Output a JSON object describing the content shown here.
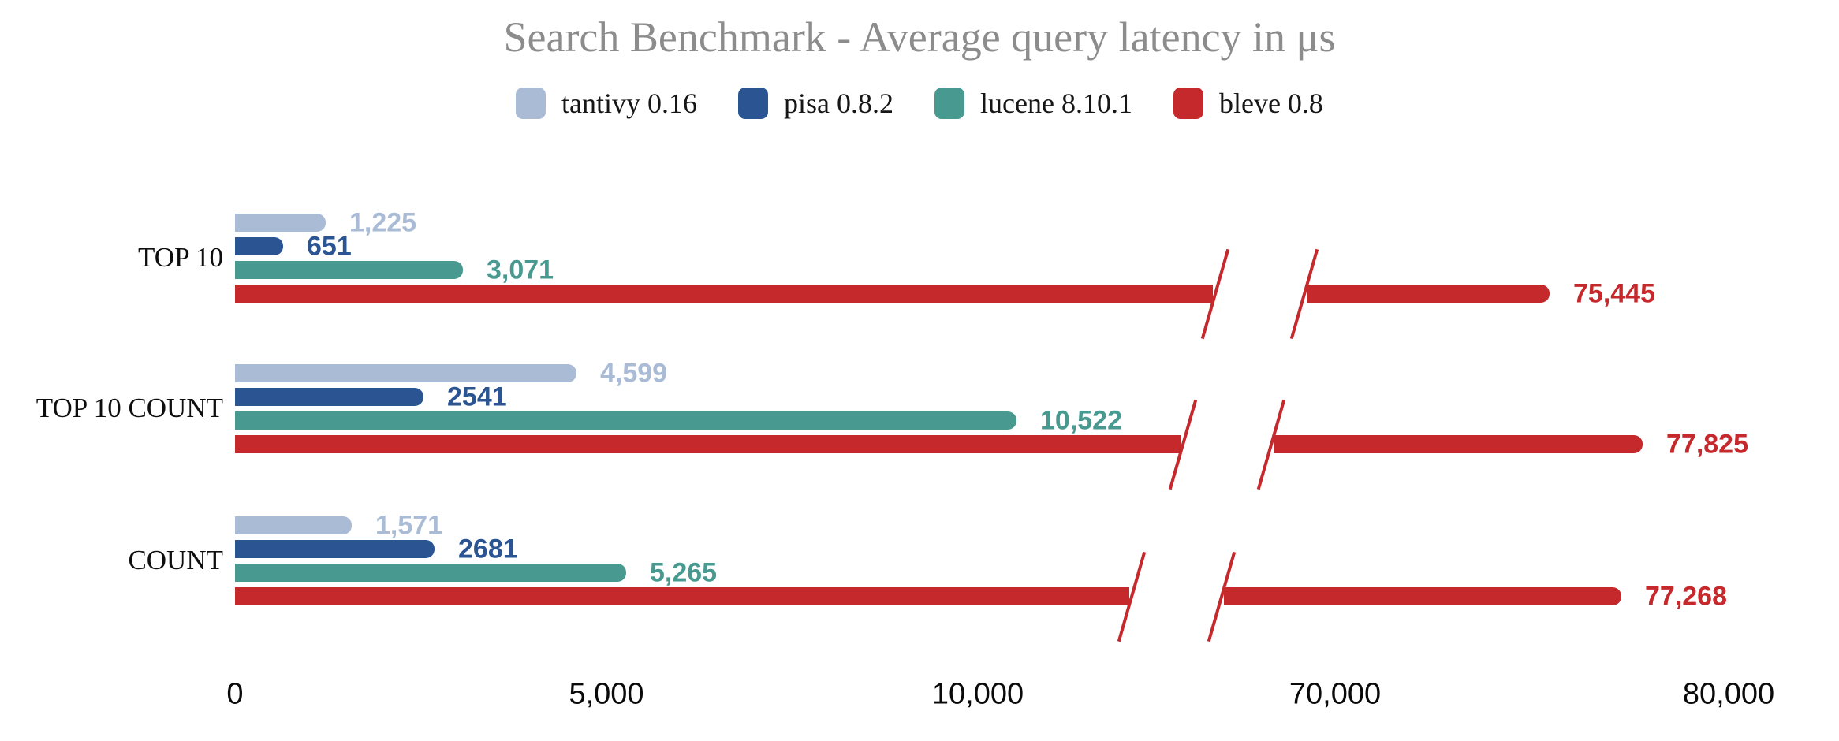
{
  "chart_data": {
    "type": "bar",
    "orientation": "horizontal",
    "title": "Search Benchmark - Average query latency in μs",
    "unit": "μs",
    "categories": [
      "TOP 10",
      "TOP 10 COUNT",
      "COUNT"
    ],
    "series": [
      {
        "name": "tantivy 0.16",
        "color": "#aabbd6",
        "values": [
          1225,
          4599,
          1571
        ],
        "value_labels": [
          "1,225",
          "4,599",
          "1,571"
        ]
      },
      {
        "name": "pisa 0.8.2",
        "color": "#2a5592",
        "values": [
          651,
          2541,
          2681
        ],
        "value_labels": [
          "651",
          "2541",
          "2681"
        ]
      },
      {
        "name": "lucene 8.10.1",
        "color": "#489a90",
        "values": [
          3071,
          10522,
          5265
        ],
        "value_labels": [
          "3,071",
          "10,522",
          "5,265"
        ]
      },
      {
        "name": "bleve 0.8",
        "color": "#c5292c",
        "values": [
          75445,
          77825,
          77268
        ],
        "value_labels": [
          "75,445",
          "77,825",
          "77,268"
        ]
      }
    ],
    "x_axis": {
      "broken": true,
      "left_segment_range": [
        0,
        12000
      ],
      "right_segment_range": [
        69000,
        81000
      ],
      "ticks": [
        {
          "label": "0",
          "value": 0,
          "segment": "left"
        },
        {
          "label": "5,000",
          "value": 5000,
          "segment": "left"
        },
        {
          "label": "10,000",
          "value": 10000,
          "segment": "left"
        },
        {
          "label": "70,000",
          "value": 70000,
          "segment": "right"
        },
        {
          "label": "80,000",
          "value": 80000,
          "segment": "right"
        }
      ]
    },
    "legend_position": "top",
    "grid": false,
    "background": "#ffffff"
  }
}
